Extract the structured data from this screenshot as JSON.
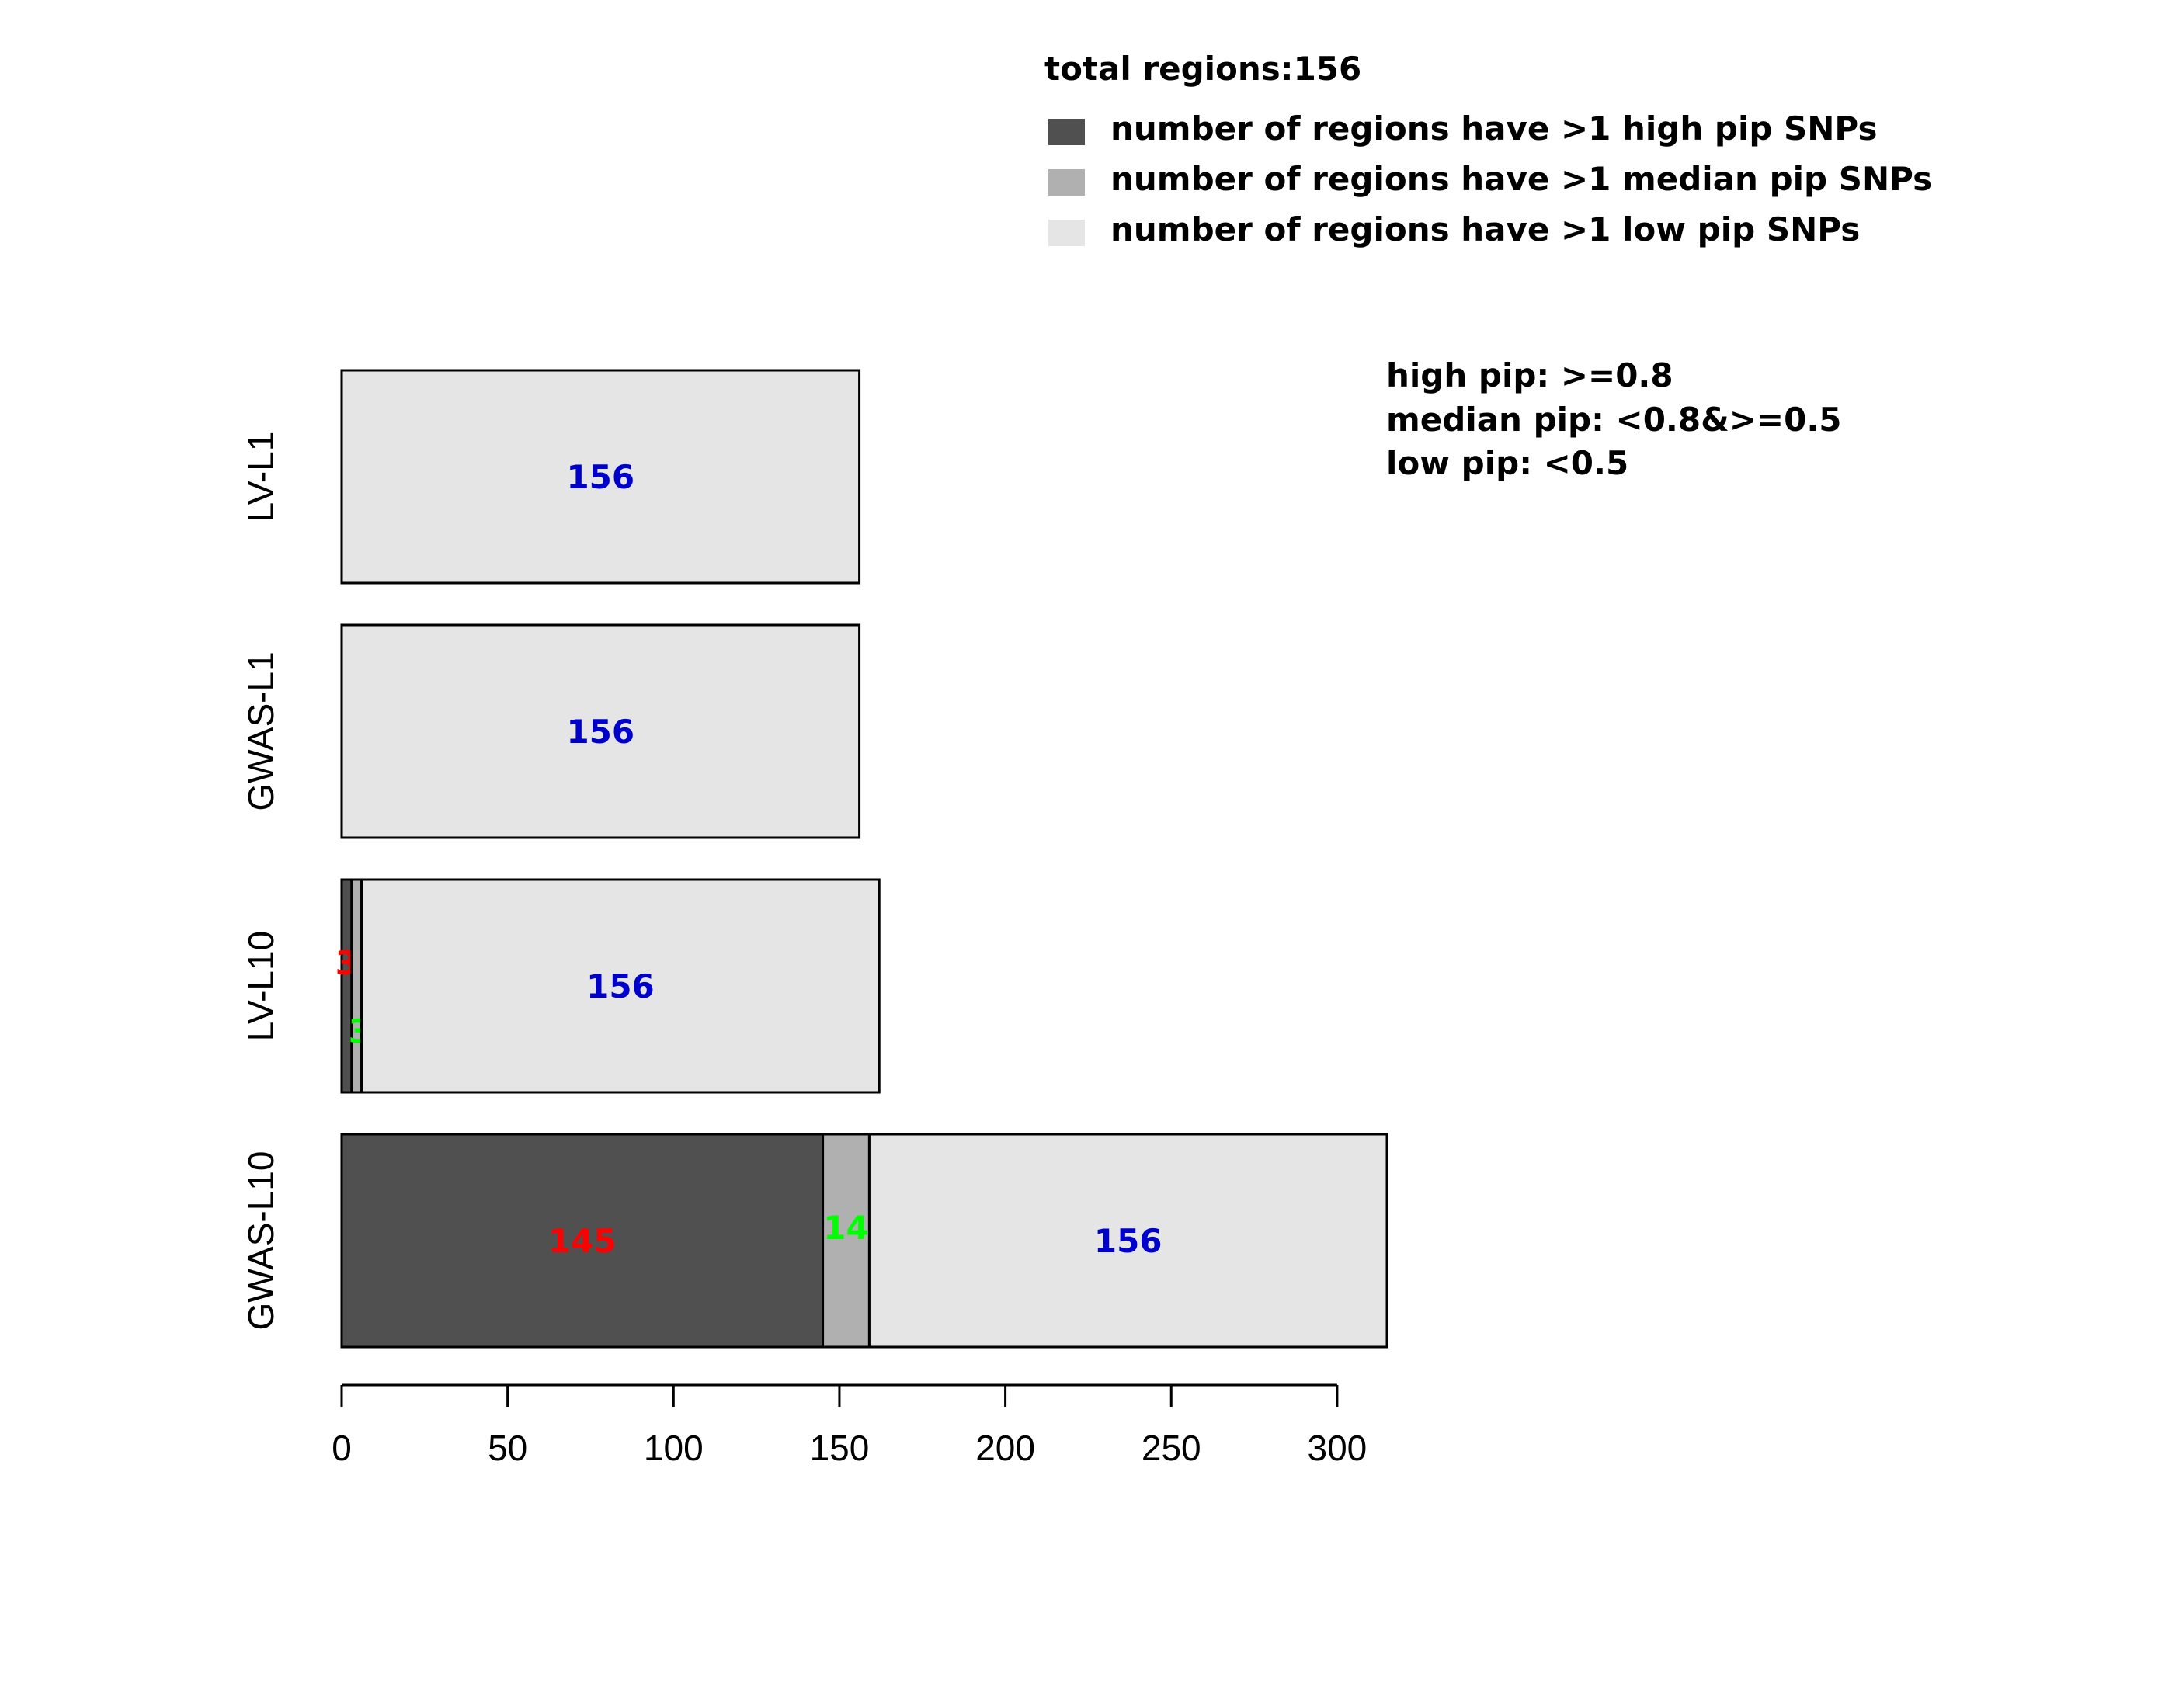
{
  "chart_data": {
    "type": "bar",
    "orientation": "horizontal",
    "stacked": true,
    "categories": [
      "LV-L1",
      "GWAS-L1",
      "LV-L10",
      "GWAS-L10"
    ],
    "series": [
      {
        "name": "number of regions have >1 high pip SNPs",
        "values": [
          0,
          0,
          3,
          145
        ],
        "color": "#505050",
        "label_color": "#ff0000"
      },
      {
        "name": "number of regions have >1 median pip SNPs",
        "values": [
          0,
          0,
          3,
          14
        ],
        "color": "#b0b0b0",
        "label_color": "#00ff00"
      },
      {
        "name": "number of regions have >1 low pip SNPs",
        "values": [
          156,
          156,
          156,
          156
        ],
        "color": "#e5e5e5",
        "label_color": "#0000cd"
      }
    ],
    "xlim": [
      0,
      300
    ],
    "xticks": [
      "0",
      "50",
      "100",
      "150",
      "200",
      "250",
      "300"
    ],
    "legend_title": "total regions:156",
    "legend_position": "top-right",
    "notes": [
      "high pip: >=0.8",
      "median pip: <0.8&>=0.5",
      "low pip: <0.5"
    ],
    "grid": false
  }
}
